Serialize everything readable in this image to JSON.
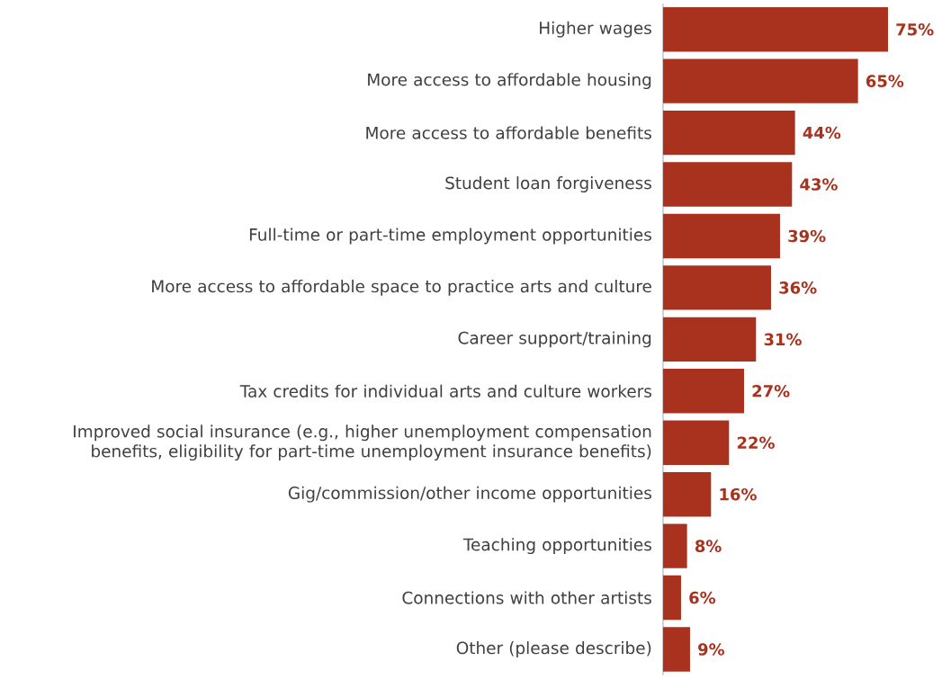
{
  "chart_data": {
    "type": "bar",
    "orientation": "horizontal",
    "color": "#a8321e",
    "categories": [
      "Higher wages",
      "More access to affordable housing",
      "More access to affordable benefits",
      "Student loan forgiveness",
      "Full-time or part-time employment opportunities",
      "More access to affordable space to practice arts and culture",
      "Career support/training",
      "Tax credits for individual arts and culture workers",
      "Improved social insurance (e.g., higher unemployment compensation benefits, eligibility for part-time unemployment insurance benefits)",
      "Gig/commission/other income opportunities",
      "Teaching opportunities",
      "Connections with other artists",
      "Other (please describe)"
    ],
    "values": [
      75,
      65,
      44,
      43,
      39,
      36,
      31,
      27,
      22,
      16,
      8,
      6,
      9
    ],
    "value_labels": [
      "75%",
      "65%",
      "44%",
      "43%",
      "39%",
      "36%",
      "31%",
      "27%",
      "22%",
      "16%",
      "8%",
      "6%",
      "9%"
    ]
  }
}
